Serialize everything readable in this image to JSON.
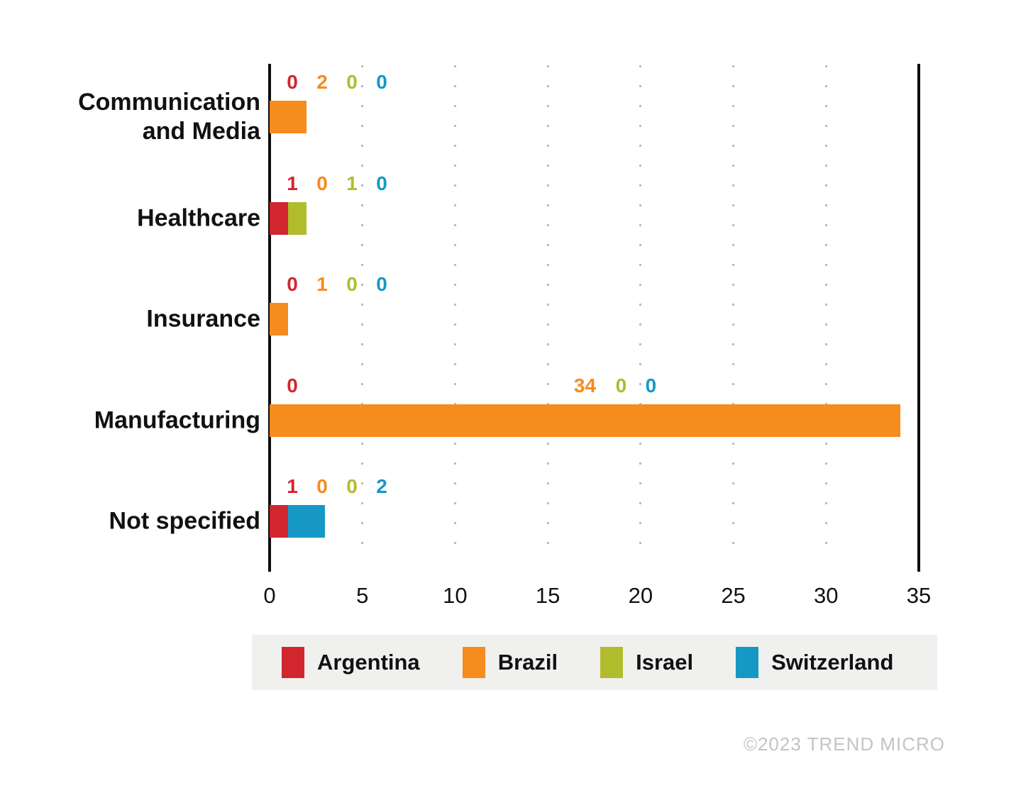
{
  "footer": {
    "copyright": "©2023 TREND MICRO"
  },
  "chart_data": {
    "type": "bar",
    "orientation": "horizontal",
    "stacked": true,
    "title": "",
    "xlabel": "",
    "ylabel": "",
    "categories": [
      "Communication and Media",
      "Healthcare",
      "Insurance",
      "Manufacturing",
      "Not specified"
    ],
    "series": [
      {
        "name": "Argentina",
        "color": "#d2262e",
        "values": [
          0,
          1,
          0,
          0,
          1
        ]
      },
      {
        "name": "Brazil",
        "color": "#f68b1e",
        "values": [
          2,
          0,
          1,
          34,
          0
        ]
      },
      {
        "name": "Israel",
        "color": "#b1bc2d",
        "values": [
          0,
          1,
          0,
          0,
          0
        ]
      },
      {
        "name": "Switzerland",
        "color": "#1599c4",
        "values": [
          0,
          0,
          0,
          0,
          2
        ]
      }
    ],
    "value_labels_shown": true,
    "x_ticks": [
      0,
      5,
      10,
      15,
      20,
      25,
      30,
      35
    ],
    "xlim": [
      0,
      35
    ],
    "grid": "dotted-vertical",
    "legend_position": "bottom",
    "legend_background": "#f0f0ee",
    "axis_color": "#0d0d0d",
    "grid_dot_color": "#bcbcbc"
  }
}
